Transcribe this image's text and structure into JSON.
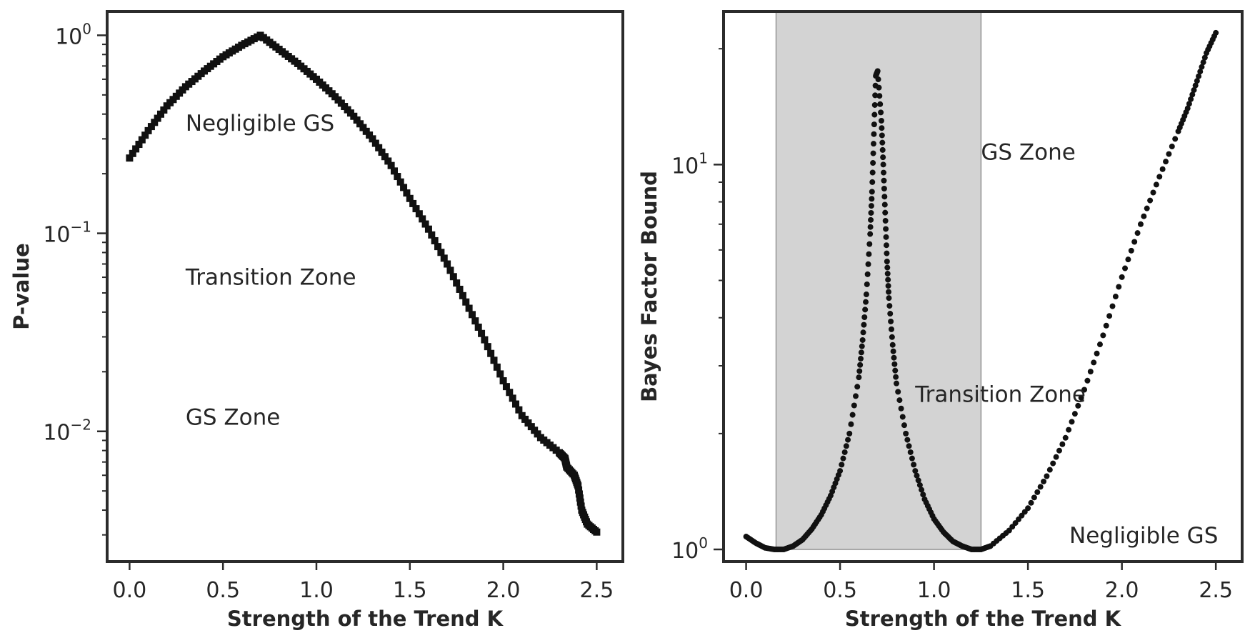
{
  "chart_data": [
    {
      "type": "scatter",
      "xlabel": "Strength of the Trend K",
      "ylabel": "P-value",
      "yscale": "log",
      "xlim": [
        -0.12,
        2.64
      ],
      "ylim": [
        0.0022,
        1.32
      ],
      "x_ticks": [
        {
          "value": 0.0,
          "label": "0.0"
        },
        {
          "value": 0.5,
          "label": "0.5"
        },
        {
          "value": 1.0,
          "label": "1.0"
        },
        {
          "value": 1.5,
          "label": "1.5"
        },
        {
          "value": 2.0,
          "label": "2.0"
        },
        {
          "value": 2.5,
          "label": "2.5"
        }
      ],
      "y_ticks": [
        {
          "value": 1,
          "base": "10",
          "exp": "0"
        },
        {
          "value": 0.1,
          "base": "10",
          "exp": "−1"
        },
        {
          "value": 0.01,
          "base": "10",
          "exp": "−2"
        }
      ],
      "annotations": [
        {
          "text": "Negligible GS",
          "x": 0.3,
          "y": 0.33
        },
        {
          "text": "Transition Zone",
          "x": 0.3,
          "y": 0.055
        },
        {
          "text": "GS Zone",
          "x": 0.3,
          "y": 0.0108
        }
      ],
      "series": [
        {
          "marker": "square",
          "x": [
            0.0,
            0.1,
            0.2,
            0.3,
            0.4,
            0.5,
            0.6,
            0.7,
            0.8,
            0.9,
            1.0,
            1.1,
            1.2,
            1.3,
            1.4,
            1.5,
            1.6,
            1.7,
            1.8,
            1.9,
            2.0,
            2.1,
            2.2,
            2.3,
            2.33,
            2.34,
            2.38,
            2.4,
            2.42,
            2.45,
            2.5
          ],
          "y": [
            0.24,
            0.33,
            0.44,
            0.55,
            0.66,
            0.78,
            0.89,
            1.0,
            0.85,
            0.72,
            0.6,
            0.49,
            0.39,
            0.3,
            0.22,
            0.15,
            0.105,
            0.07,
            0.045,
            0.029,
            0.018,
            0.012,
            0.0093,
            0.0078,
            0.0073,
            0.0066,
            0.006,
            0.0053,
            0.004,
            0.0034,
            0.0031
          ]
        }
      ]
    },
    {
      "type": "scatter",
      "xlabel": "Strength of the Trend K",
      "ylabel": "Bayes Factor Bound",
      "yscale": "log",
      "xlim": [
        -0.12,
        2.64
      ],
      "ylim": [
        0.93,
        25.0
      ],
      "shaded_region": {
        "x_from": 0.16,
        "x_to": 1.25,
        "y_from": 1.0,
        "y_to": 25.0,
        "color": "#d3d3d3"
      },
      "x_ticks": [
        {
          "value": 0.0,
          "label": "0.0"
        },
        {
          "value": 0.5,
          "label": "0.5"
        },
        {
          "value": 1.0,
          "label": "1.0"
        },
        {
          "value": 1.5,
          "label": "1.5"
        },
        {
          "value": 2.0,
          "label": "2.0"
        },
        {
          "value": 2.5,
          "label": "2.5"
        }
      ],
      "y_ticks": [
        {
          "value": 1,
          "base": "10",
          "exp": "0"
        },
        {
          "value": 10,
          "base": "10",
          "exp": "1"
        }
      ],
      "annotations": [
        {
          "text": "GS Zone",
          "x": 1.25,
          "y": 10.3
        },
        {
          "text": "Transition Zone",
          "x": 0.9,
          "y": 2.42
        },
        {
          "text": "Negligible GS",
          "x": 1.72,
          "y": 1.04
        }
      ],
      "series": [
        {
          "marker": "dot",
          "x": [
            0.0,
            0.05,
            0.1,
            0.15,
            0.2,
            0.25,
            0.3,
            0.35,
            0.4,
            0.45,
            0.5,
            0.55,
            0.6,
            0.62,
            0.64,
            0.66,
            0.67,
            0.68,
            0.69,
            0.7,
            0.72,
            0.73,
            0.74,
            0.75,
            0.76,
            0.78,
            0.8,
            0.85,
            0.9,
            0.95,
            1.0,
            1.05,
            1.1,
            1.15,
            1.2,
            1.25,
            1.3,
            1.4,
            1.5,
            1.6,
            1.7,
            1.8,
            1.9,
            2.0,
            2.1,
            2.2,
            2.3,
            2.35,
            2.4,
            2.45,
            2.5
          ],
          "y": [
            1.08,
            1.04,
            1.01,
            1.0,
            1.0,
            1.02,
            1.06,
            1.13,
            1.23,
            1.38,
            1.6,
            2.0,
            2.8,
            3.5,
            4.6,
            6.6,
            8.5,
            12.0,
            17.0,
            17.5,
            13.0,
            10.0,
            7.5,
            5.6,
            4.5,
            3.4,
            2.7,
            2.0,
            1.6,
            1.35,
            1.2,
            1.11,
            1.05,
            1.02,
            1.0,
            1.0,
            1.02,
            1.12,
            1.28,
            1.55,
            1.95,
            2.6,
            3.6,
            5.1,
            7.0,
            9.3,
            12.2,
            14.0,
            16.5,
            19.5,
            22.0
          ]
        }
      ]
    }
  ]
}
